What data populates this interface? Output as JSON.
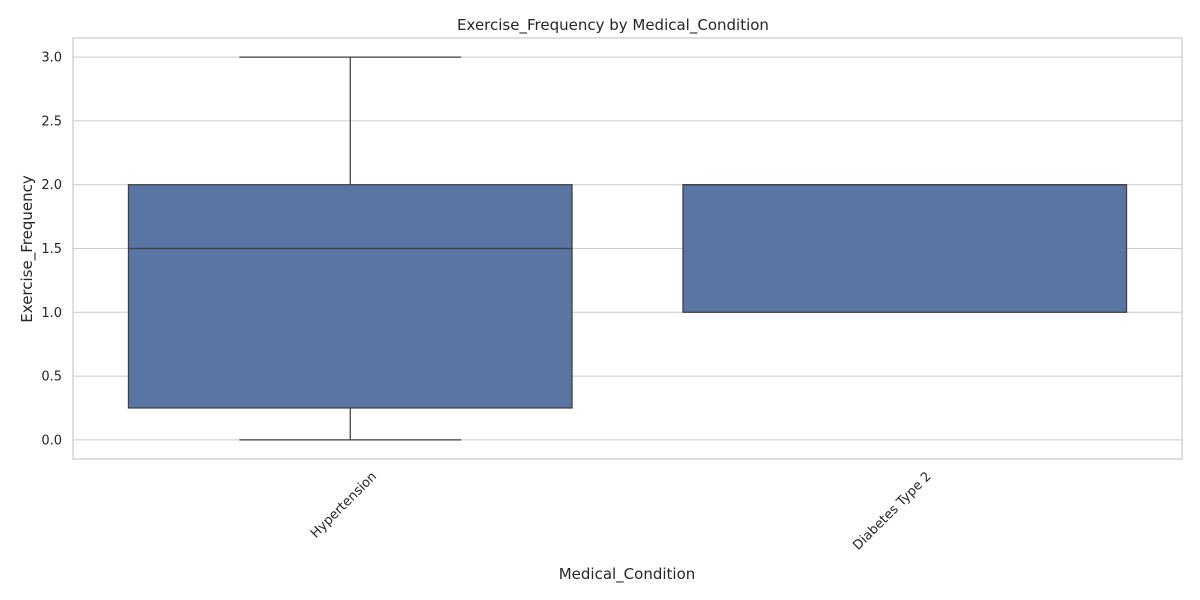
{
  "chart_data": {
    "type": "box",
    "title": "Exercise_Frequency by Medical_Condition",
    "xlabel": "Medical_Condition",
    "ylabel": "Exercise_Frequency",
    "ylim": [
      -0.15,
      3.15
    ],
    "yticks": [
      "0.0",
      "0.5",
      "1.0",
      "1.5",
      "2.0",
      "2.5",
      "3.0"
    ],
    "grid": true,
    "box_color": "#5875a4",
    "categories": [
      "Hypertension",
      "Diabetes Type 2"
    ],
    "boxes": [
      {
        "category": "Hypertension",
        "min": 0.0,
        "q1": 0.25,
        "median": 1.5,
        "q3": 2.0,
        "max": 3.0
      },
      {
        "category": "Diabetes Type 2",
        "min": 1.0,
        "q1": 1.0,
        "median": 2.0,
        "q3": 2.0,
        "max": 2.0
      }
    ]
  }
}
